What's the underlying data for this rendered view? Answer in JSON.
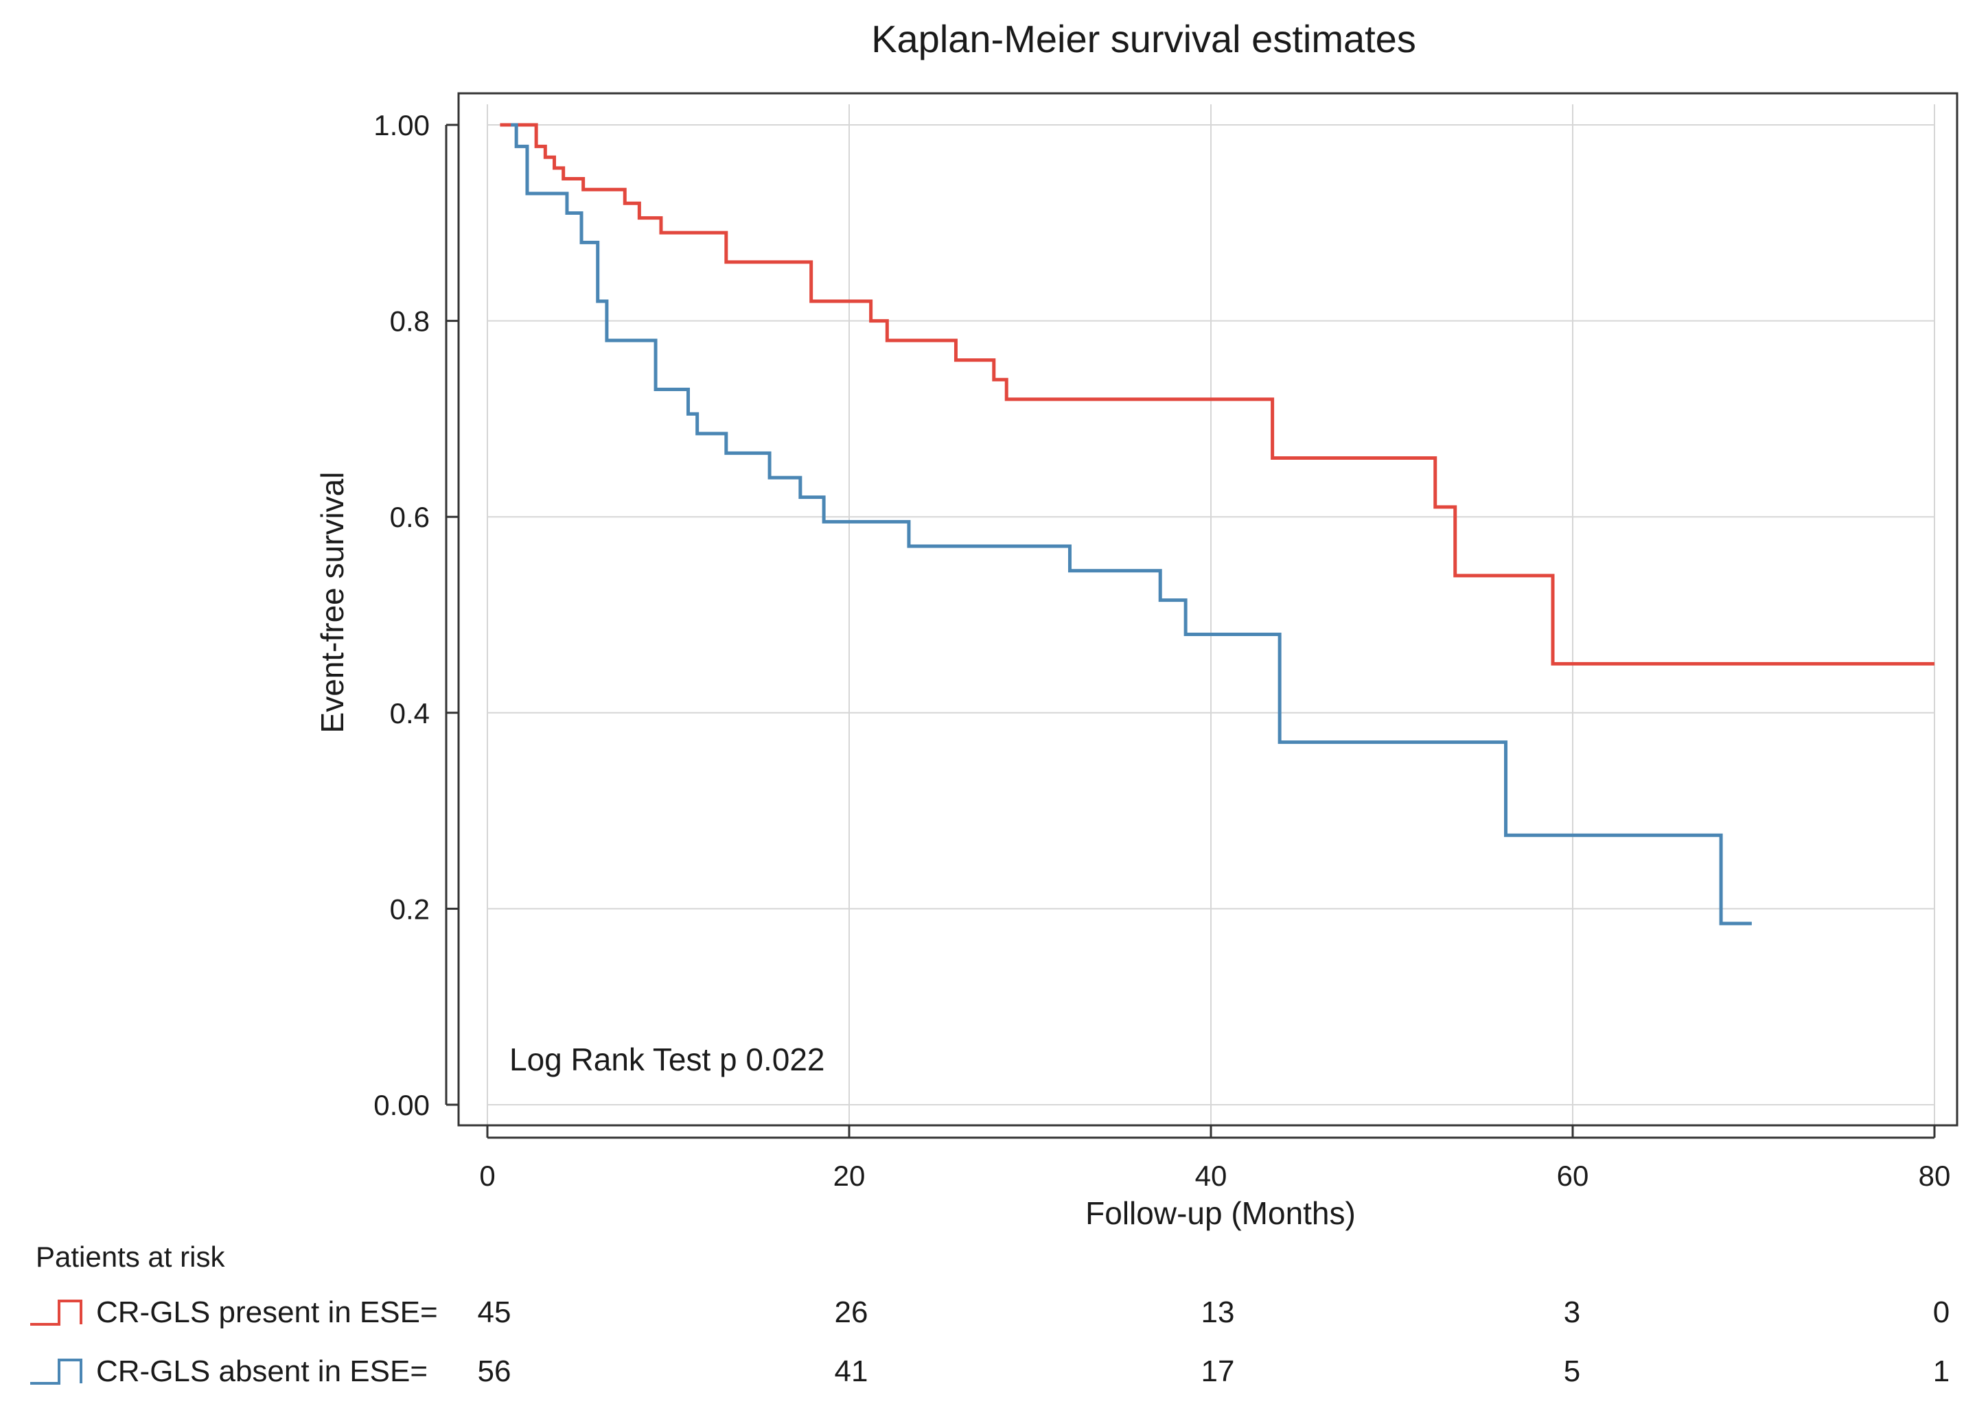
{
  "chart_data": {
    "type": "line",
    "title": "Kaplan-Meier survival estimates",
    "xlabel": "Follow-up (Months)",
    "ylabel": "Event-free survival",
    "xlim": [
      0,
      80
    ],
    "ylim": [
      0,
      1
    ],
    "x_ticks": [
      "0",
      "20",
      "40",
      "60",
      "80"
    ],
    "y_ticks": [
      "0.00",
      "0.2",
      "0.4",
      "0.6",
      "0.8",
      "1.00"
    ],
    "grid": true,
    "annotation": "Log Rank Test p 0.022",
    "series": [
      {
        "name": "CR-GLS present in ESE",
        "color": "#e2473d",
        "steps": [
          [
            0.7,
            1.0
          ],
          [
            2.7,
            0.978
          ],
          [
            3.2,
            0.967
          ],
          [
            3.7,
            0.956
          ],
          [
            4.2,
            0.945
          ],
          [
            5.3,
            0.934
          ],
          [
            7.6,
            0.92
          ],
          [
            8.4,
            0.905
          ],
          [
            9.6,
            0.89
          ],
          [
            13.2,
            0.86
          ],
          [
            17.9,
            0.82
          ],
          [
            21.2,
            0.8
          ],
          [
            22.1,
            0.78
          ],
          [
            25.9,
            0.76
          ],
          [
            28.0,
            0.74
          ],
          [
            28.7,
            0.72
          ],
          [
            43.4,
            0.66
          ],
          [
            52.4,
            0.61
          ],
          [
            53.5,
            0.54
          ],
          [
            58.9,
            0.45
          ],
          [
            80.0,
            0.45
          ]
        ]
      },
      {
        "name": "CR-GLS absent in ESE",
        "color": "#4a86b4",
        "steps": [
          [
            1.3,
            1.0
          ],
          [
            1.6,
            0.978
          ],
          [
            2.2,
            0.93
          ],
          [
            4.4,
            0.91
          ],
          [
            5.2,
            0.88
          ],
          [
            6.1,
            0.82
          ],
          [
            6.6,
            0.78
          ],
          [
            9.3,
            0.73
          ],
          [
            11.1,
            0.705
          ],
          [
            11.6,
            0.685
          ],
          [
            13.2,
            0.665
          ],
          [
            15.6,
            0.64
          ],
          [
            17.3,
            0.62
          ],
          [
            18.6,
            0.595
          ],
          [
            23.3,
            0.57
          ],
          [
            32.2,
            0.545
          ],
          [
            37.2,
            0.515
          ],
          [
            38.6,
            0.48
          ],
          [
            43.8,
            0.37
          ],
          [
            56.3,
            0.275
          ],
          [
            68.2,
            0.185
          ],
          [
            69.9,
            0.185
          ]
        ]
      }
    ]
  },
  "risk_table": {
    "title": "Patients at risk",
    "rows": [
      {
        "label": "CR-GLS present in ESE=",
        "color": "#e2473d",
        "values": [
          "45",
          "26",
          "13",
          "3",
          "0"
        ]
      },
      {
        "label": "CR-GLS absent in ESE=",
        "color": "#4a86b4",
        "values": [
          "56",
          "41",
          "17",
          "5",
          "1"
        ]
      }
    ]
  }
}
